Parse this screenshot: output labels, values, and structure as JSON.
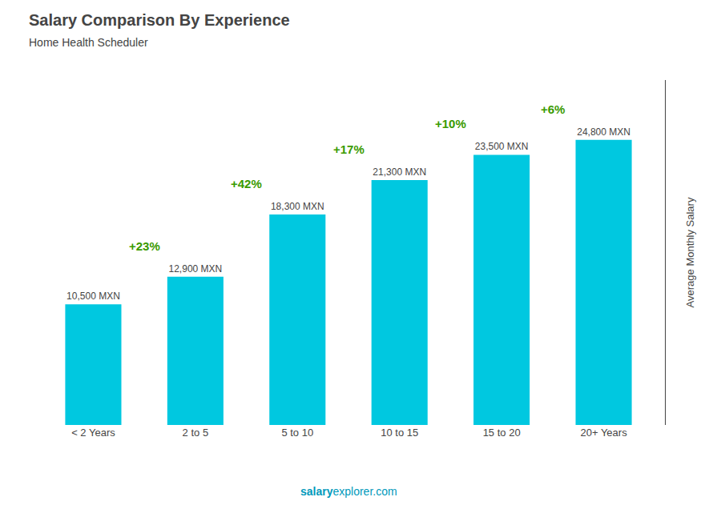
{
  "chart_data": {
    "type": "bar",
    "title": "Salary Comparison By Experience",
    "subtitle": "Home Health Scheduler",
    "categories": [
      "< 2 Years",
      "2 to 5",
      "5 to 10",
      "10 to 15",
      "15 to 20",
      "20+ Years"
    ],
    "values": [
      10500,
      12900,
      18300,
      21300,
      23500,
      24800
    ],
    "value_labels": [
      "10,500 MXN",
      "12,900 MXN",
      "18,300 MXN",
      "21,300 MXN",
      "23,500 MXN",
      "24,800 MXN"
    ],
    "data_labels": true,
    "color": "#00c8e0",
    "ylabel": "Average Monthly Salary",
    "ylim": [
      0,
      30000
    ],
    "tick_labels": "x",
    "grid": false,
    "annotations": [
      "+23%",
      "+42%",
      "+17%",
      "+10%",
      "+6%"
    ],
    "footer": [
      "salary",
      "explorer.com"
    ]
  }
}
